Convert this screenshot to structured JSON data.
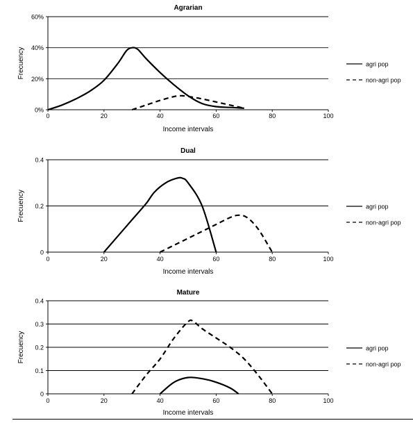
{
  "chart_data": [
    {
      "type": "line",
      "title": "Agrarian",
      "xlabel": "Income intervals",
      "ylabel": "Frecuency",
      "xlim": [
        0,
        100
      ],
      "ylim": [
        0,
        60
      ],
      "xticks": [
        0,
        20,
        40,
        60,
        80,
        100
      ],
      "xtick_labels": [
        "0",
        "20",
        "40",
        "60",
        "80",
        "100"
      ],
      "yticks": [
        0,
        20,
        40,
        60
      ],
      "ytick_labels": [
        "0%",
        "20%",
        "40%",
        "60%"
      ],
      "grid": "horizontal",
      "legend": "right",
      "series": [
        {
          "name": "agri pop",
          "style": "solid",
          "points": [
            [
              0,
              0
            ],
            [
              5,
              3
            ],
            [
              10,
              7
            ],
            [
              15,
              12
            ],
            [
              20,
              19
            ],
            [
              25,
              30
            ],
            [
              28,
              38
            ],
            [
              30,
              40
            ],
            [
              32,
              39
            ],
            [
              35,
              33
            ],
            [
              40,
              24
            ],
            [
              45,
              16
            ],
            [
              50,
              9
            ],
            [
              55,
              4
            ],
            [
              60,
              2
            ],
            [
              65,
              1.5
            ],
            [
              70,
              1
            ]
          ]
        },
        {
          "name": "non-agri pop",
          "style": "dashed",
          "points": [
            [
              30,
              0
            ],
            [
              35,
              3
            ],
            [
              40,
              6
            ],
            [
              45,
              8.5
            ],
            [
              48,
              9
            ],
            [
              52,
              8
            ],
            [
              55,
              7
            ],
            [
              60,
              5
            ],
            [
              65,
              3
            ],
            [
              70,
              1
            ]
          ]
        }
      ]
    },
    {
      "type": "line",
      "title": "Dual",
      "xlabel": "Income intervals",
      "ylabel": "Frecuency",
      "xlim": [
        0,
        100
      ],
      "ylim": [
        0,
        0.4
      ],
      "xticks": [
        0,
        20,
        40,
        60,
        80,
        100
      ],
      "xtick_labels": [
        "0",
        "20",
        "40",
        "60",
        "80",
        "100"
      ],
      "yticks": [
        0,
        0.2,
        0.4
      ],
      "ytick_labels": [
        "0",
        "0.2",
        "0.4"
      ],
      "grid": "horizontal",
      "legend": "right",
      "series": [
        {
          "name": "agri pop",
          "style": "solid",
          "points": [
            [
              20,
              0
            ],
            [
              25,
              0.07
            ],
            [
              30,
              0.14
            ],
            [
              35,
              0.21
            ],
            [
              38,
              0.26
            ],
            [
              42,
              0.3
            ],
            [
              46,
              0.32
            ],
            [
              48,
              0.32
            ],
            [
              50,
              0.3
            ],
            [
              55,
              0.2
            ],
            [
              60,
              0
            ]
          ]
        },
        {
          "name": "non-agri pop",
          "style": "dashed",
          "points": [
            [
              40,
              0
            ],
            [
              45,
              0.03
            ],
            [
              50,
              0.06
            ],
            [
              55,
              0.09
            ],
            [
              60,
              0.12
            ],
            [
              65,
              0.15
            ],
            [
              68,
              0.16
            ],
            [
              71,
              0.15
            ],
            [
              75,
              0.1
            ],
            [
              80,
              0
            ]
          ]
        }
      ]
    },
    {
      "type": "line",
      "title": "Mature",
      "xlabel": "Income intervals",
      "ylabel": "Frecuency",
      "xlim": [
        0,
        100
      ],
      "ylim": [
        0,
        0.4
      ],
      "xticks": [
        0,
        20,
        40,
        60,
        80,
        100
      ],
      "xtick_labels": [
        "0",
        "20",
        "40",
        "60",
        "80",
        "100"
      ],
      "yticks": [
        0,
        0.1,
        0.2,
        0.3,
        0.4
      ],
      "ytick_labels": [
        "0",
        "0.1",
        "0.2",
        "0.3",
        "0.4"
      ],
      "grid": "horizontal",
      "legend": "right",
      "series": [
        {
          "name": "agri pop",
          "style": "solid",
          "points": [
            [
              40,
              0
            ],
            [
              45,
              0.05
            ],
            [
              50,
              0.07
            ],
            [
              55,
              0.065
            ],
            [
              60,
              0.05
            ],
            [
              65,
              0.025
            ],
            [
              68,
              0
            ]
          ]
        },
        {
          "name": "non-agri pop",
          "style": "dashed",
          "points": [
            [
              30,
              0
            ],
            [
              35,
              0.08
            ],
            [
              40,
              0.15
            ],
            [
              45,
              0.24
            ],
            [
              50,
              0.31
            ],
            [
              52,
              0.31
            ],
            [
              55,
              0.28
            ],
            [
              60,
              0.24
            ],
            [
              65,
              0.2
            ],
            [
              70,
              0.15
            ],
            [
              75,
              0.08
            ],
            [
              80,
              0
            ]
          ]
        }
      ]
    }
  ]
}
